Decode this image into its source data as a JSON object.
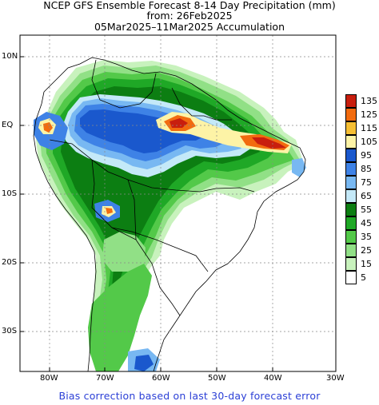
{
  "header": {
    "line1": "NCEP GFS Ensemble Forecast 8-14 Day Precipitation (mm)",
    "line2": "from: 26Feb2025",
    "line3": "05Mar2025–11Mar2025 Accumulation"
  },
  "axes": {
    "lat_labels": [
      "10N",
      "EQ",
      "10S",
      "20S",
      "30S"
    ],
    "lon_labels": [
      "80W",
      "70W",
      "60W",
      "50W",
      "40W",
      "30W"
    ]
  },
  "legend": {
    "items": [
      {
        "label": "135",
        "color": "#c81e0e"
      },
      {
        "label": "125",
        "color": "#f26b0f"
      },
      {
        "label": "115",
        "color": "#f6bf34"
      },
      {
        "label": "105",
        "color": "#fdf3a6"
      },
      {
        "label": "95",
        "color": "#1a58cd"
      },
      {
        "label": "85",
        "color": "#3e82e6"
      },
      {
        "label": "75",
        "color": "#78b8f2"
      },
      {
        "label": "65",
        "color": "#c4e9f8"
      },
      {
        "label": "55",
        "color": "#0c7e12"
      },
      {
        "label": "45",
        "color": "#1fa826"
      },
      {
        "label": "35",
        "color": "#53c949"
      },
      {
        "label": "25",
        "color": "#91e086"
      },
      {
        "label": "15",
        "color": "#c8f2bd"
      },
      {
        "label": "5",
        "color": "#ffffff"
      }
    ]
  },
  "footer": "Bias correction based on last 30-day forecast error"
}
